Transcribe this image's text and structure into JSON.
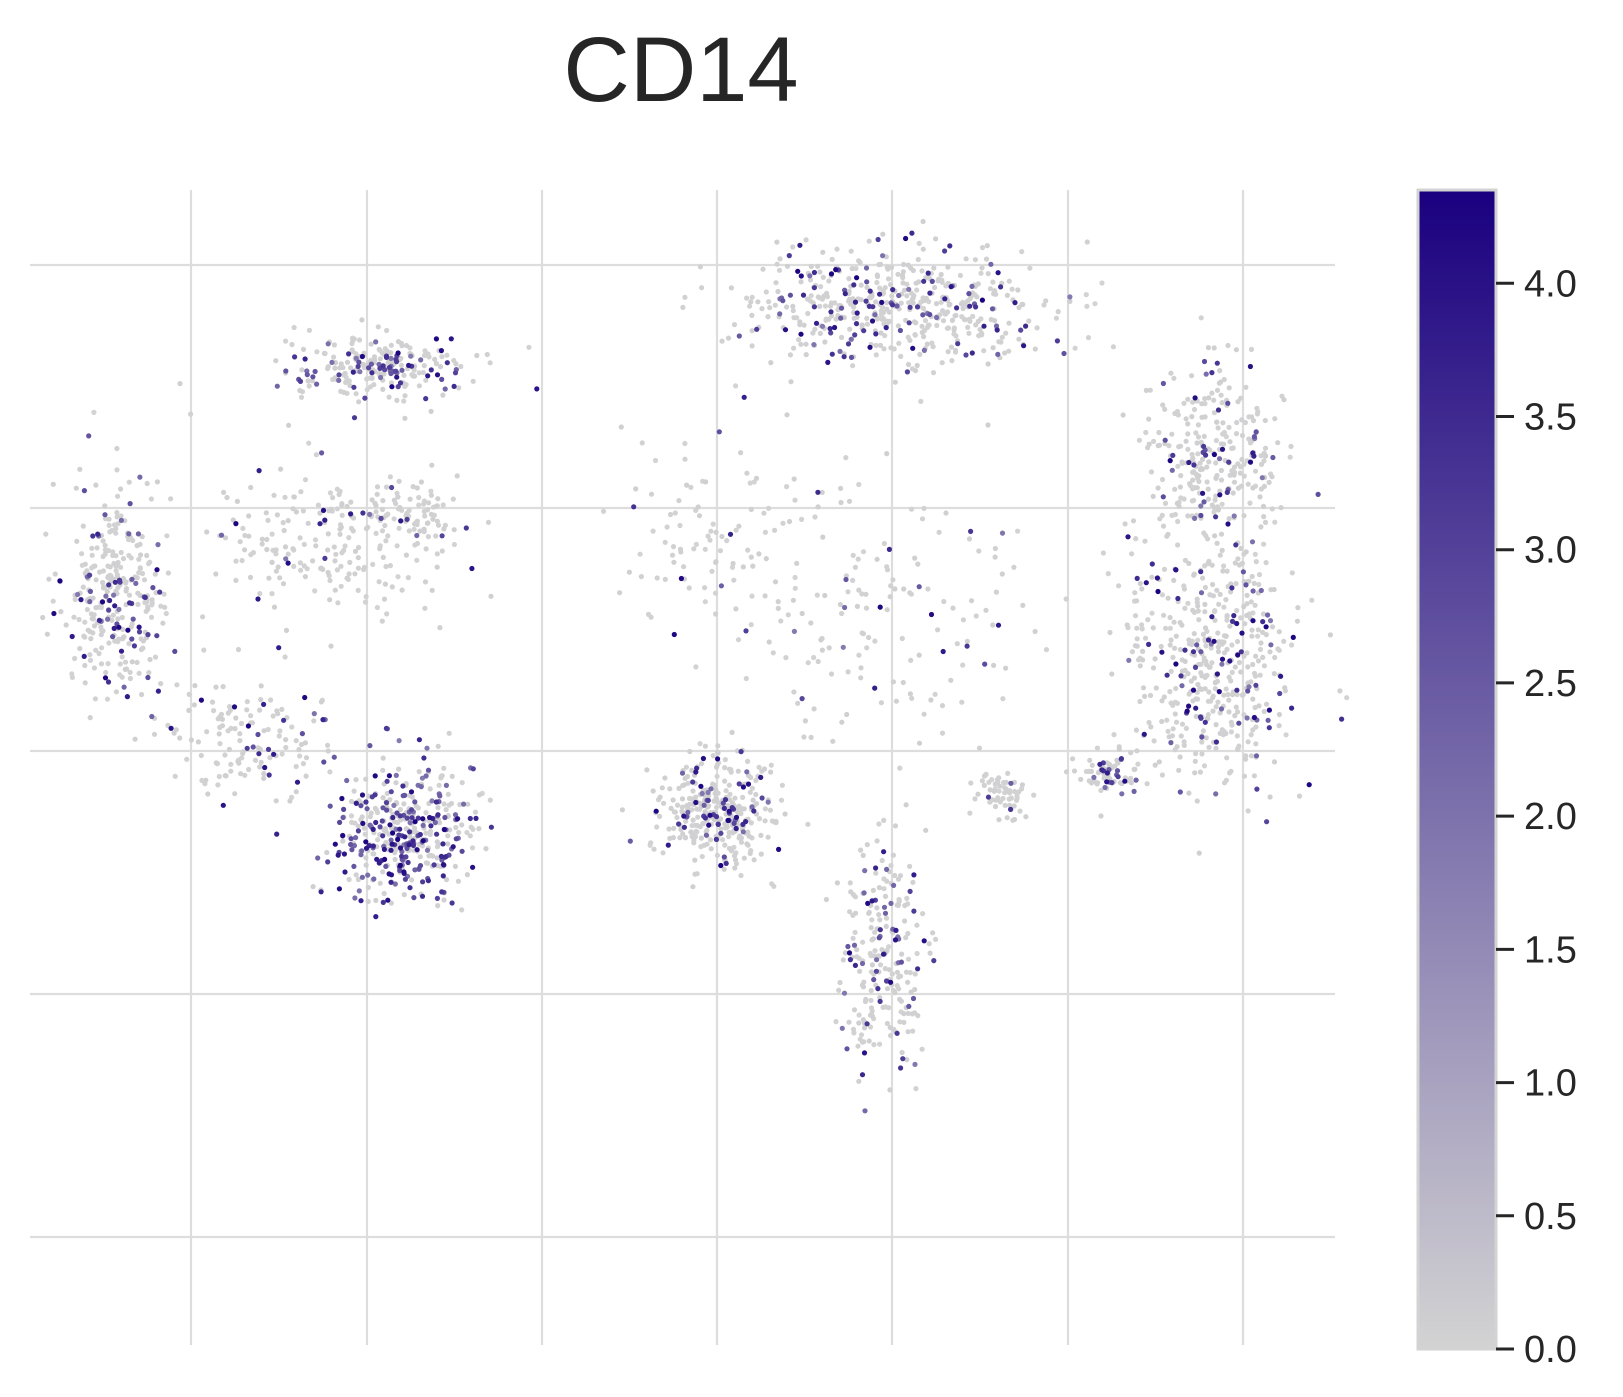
{
  "chart_data": {
    "type": "scatter",
    "title": "CD14",
    "xlabel": "",
    "ylabel": "",
    "xlim": [
      -9,
      6
    ],
    "ylim": [
      -8,
      10
    ],
    "grid": true,
    "x_ticks_labeled": false,
    "y_ticks_labeled": false,
    "colorbar": {
      "ticks": [
        "0.0",
        "0.5",
        "1.0",
        "1.5",
        "2.0",
        "2.5",
        "3.0",
        "3.5",
        "4.0"
      ],
      "tick_values": [
        0.0,
        0.5,
        1.0,
        1.5,
        2.0,
        2.5,
        3.0,
        3.5,
        4.0
      ],
      "range": [
        0.0,
        4.35
      ],
      "color_low": "#d3d3d3",
      "color_high": "#1a007f"
    },
    "clusters": [
      {
        "name": "",
        "center": [
          -8.0,
          3.7
        ],
        "spread": [
          0.55,
          1.6
        ],
        "count": 320,
        "high_fraction": 0.22
      },
      {
        "name": "",
        "center": [
          -6.4,
          1.4
        ],
        "spread": [
          0.9,
          0.9
        ],
        "count": 140,
        "high_fraction": 0.18
      },
      {
        "name": "",
        "center": [
          -4.7,
          0.0
        ],
        "spread": [
          0.7,
          1.0
        ],
        "count": 420,
        "high_fraction": 0.45
      },
      {
        "name": "",
        "center": [
          -5.0,
          7.2
        ],
        "spread": [
          1.0,
          0.45
        ],
        "count": 240,
        "high_fraction": 0.3
      },
      {
        "name": "",
        "center": [
          -5.6,
          4.5
        ],
        "spread": [
          1.3,
          1.3
        ],
        "count": 220,
        "high_fraction": 0.12
      },
      {
        "name": "",
        "center": [
          -4.6,
          5.0
        ],
        "spread": [
          0.4,
          0.5
        ],
        "count": 60,
        "high_fraction": 0.2
      },
      {
        "name": "",
        "center": [
          -1.1,
          0.3
        ],
        "spread": [
          0.6,
          0.8
        ],
        "count": 360,
        "high_fraction": 0.13
      },
      {
        "name": "",
        "center": [
          -0.9,
          4.5
        ],
        "spread": [
          1.3,
          1.5
        ],
        "count": 120,
        "high_fraction": 0.1
      },
      {
        "name": "",
        "center": [
          0.9,
          3.2
        ],
        "spread": [
          1.6,
          1.9
        ],
        "count": 130,
        "high_fraction": 0.1
      },
      {
        "name": "",
        "center": [
          0.8,
          -1.9
        ],
        "spread": [
          0.45,
          1.6
        ],
        "count": 240,
        "high_fraction": 0.22
      },
      {
        "name": "",
        "center": [
          2.2,
          0.6
        ],
        "spread": [
          0.25,
          0.35
        ],
        "count": 60,
        "high_fraction": 0.05
      },
      {
        "name": "",
        "center": [
          0.9,
          8.2
        ],
        "spread": [
          1.6,
          0.8
        ],
        "count": 520,
        "high_fraction": 0.22
      },
      {
        "name": "",
        "center": [
          4.6,
          5.8
        ],
        "spread": [
          0.7,
          1.3
        ],
        "count": 300,
        "high_fraction": 0.16
      },
      {
        "name": "",
        "center": [
          4.6,
          2.6
        ],
        "spread": [
          0.9,
          1.8
        ],
        "count": 480,
        "high_fraction": 0.17
      },
      {
        "name": "",
        "center": [
          3.4,
          0.9
        ],
        "spread": [
          0.35,
          0.3
        ],
        "count": 70,
        "high_fraction": 0.3
      }
    ]
  }
}
